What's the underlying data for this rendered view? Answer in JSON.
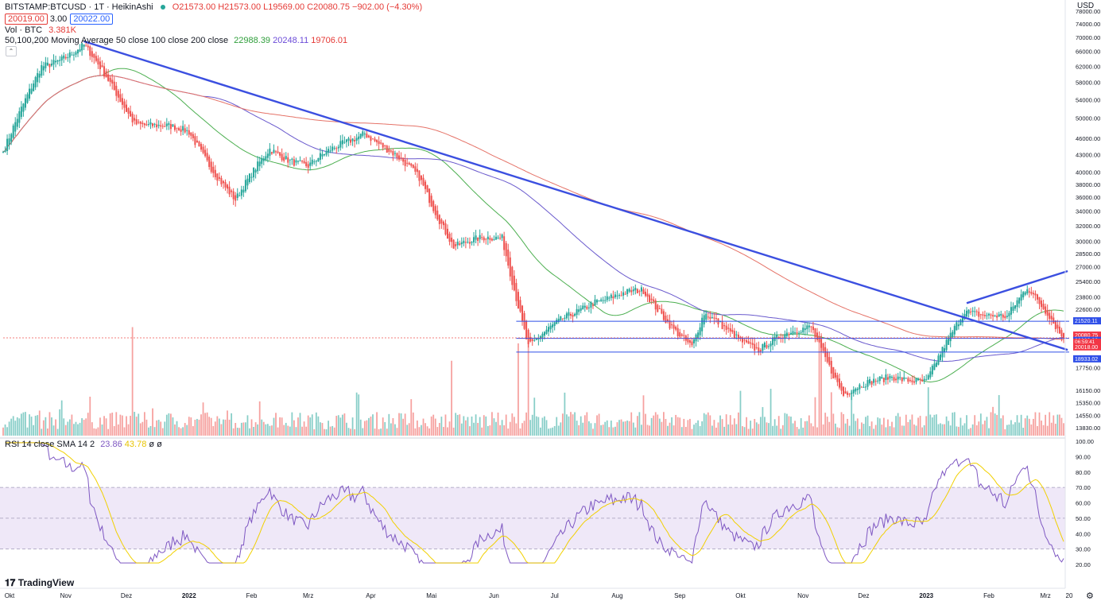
{
  "legend": {
    "symbol_line": "BITSTAMP:BTCUSD · 1T · HeikinAshi",
    "ohlc": "O21573.00 H21573.00 L19569.00 C20080.75 −902.00 (−4.30%)",
    "bid": "20019.00",
    "spread": "3.00",
    "ask": "20022.00",
    "vol_label": "Vol · BTC",
    "vol_value": "3.381K",
    "ma_label": "50,100,200 Moving Average 50 close 100 close 200 close",
    "ma50": "22988.39",
    "ma100": "20248.11",
    "ma200": "19706.01",
    "rsi_label": "RSI 14 close SMA 14 2",
    "rsi_value": "23.86",
    "rsi_sma": "43.78",
    "rsi_extra": "ø ø"
  },
  "price_axis": {
    "currency": "USD",
    "ticks": [
      "78000.00",
      "74000.00",
      "70000.00",
      "66000.00",
      "62000.00",
      "58000.00",
      "54000.00",
      "50000.00",
      "46000.00",
      "43000.00",
      "40000.00",
      "38000.00",
      "36000.00",
      "34000.00",
      "32000.00",
      "30000.00",
      "28500.00",
      "27000.00",
      "25400.00",
      "23800.00",
      "22600.00",
      "17750.00",
      "16150.00",
      "15350.00",
      "14550.00",
      "13830.00"
    ],
    "tag_21520": "21520.11",
    "tag_last": "20080.75",
    "tag_countdown": "06:59:41",
    "tag_20039": "20039.00",
    "tag_20018": "20018.00",
    "tag_18933": "18933.02"
  },
  "rsi_axis": {
    "ticks": [
      "100.00",
      "90.00",
      "80.00",
      "70.00",
      "60.00",
      "50.00",
      "40.00",
      "30.00",
      "20.00"
    ]
  },
  "time_axis": {
    "labels": [
      "Okt",
      "Nov",
      "Dez",
      "2022",
      "Feb",
      "Mrz",
      "Apr",
      "Mai",
      "Jun",
      "Jul",
      "Aug",
      "Sep",
      "Okt",
      "Nov",
      "Dez",
      "2023",
      "Feb",
      "Mrz",
      "20"
    ]
  },
  "branding": {
    "logo_text": "TradingView"
  },
  "colors": {
    "up": "#26a69a",
    "down": "#ef5350",
    "trendline": "#3b4fe0",
    "ma50": "#4caf50",
    "ma100": "#6a5acd",
    "ma200": "#e57368",
    "rsi": "#7e57c2",
    "rsi_sma": "#f1d000",
    "rsi_band": "#efe8f8"
  },
  "chart_data": [
    {
      "type": "candlestick",
      "title": "BITSTAMP:BTCUSD · 1T · HeikinAshi",
      "x_range": [
        "2021-10-01",
        "2023-03-10"
      ],
      "y_scale": "log",
      "y_range": [
        13830,
        78000
      ],
      "approx_close_path": [
        {
          "date": "2021-10-01",
          "value": 43500
        },
        {
          "date": "2021-10-20",
          "value": 62000
        },
        {
          "date": "2021-11-10",
          "value": 67500
        },
        {
          "date": "2021-12-05",
          "value": 49500
        },
        {
          "date": "2022-01-01",
          "value": 47000
        },
        {
          "date": "2022-01-24",
          "value": 35500
        },
        {
          "date": "2022-02-10",
          "value": 44000
        },
        {
          "date": "2022-03-01",
          "value": 41000
        },
        {
          "date": "2022-03-29",
          "value": 47500
        },
        {
          "date": "2022-04-25",
          "value": 39000
        },
        {
          "date": "2022-05-12",
          "value": 29500
        },
        {
          "date": "2022-06-05",
          "value": 30500
        },
        {
          "date": "2022-06-18",
          "value": 19500
        },
        {
          "date": "2022-07-20",
          "value": 23500
        },
        {
          "date": "2022-08-14",
          "value": 24300
        },
        {
          "date": "2022-09-07",
          "value": 19300
        },
        {
          "date": "2022-09-13",
          "value": 22000
        },
        {
          "date": "2022-10-10",
          "value": 19200
        },
        {
          "date": "2022-11-05",
          "value": 21200
        },
        {
          "date": "2022-11-21",
          "value": 15800
        },
        {
          "date": "2022-12-15",
          "value": 17300
        },
        {
          "date": "2023-01-01",
          "value": 16600
        },
        {
          "date": "2023-01-20",
          "value": 22700
        },
        {
          "date": "2023-02-10",
          "value": 21700
        },
        {
          "date": "2023-02-20",
          "value": 24700
        },
        {
          "date": "2023-03-03",
          "value": 22300
        },
        {
          "date": "2023-03-10",
          "value": 20080.75
        }
      ],
      "horizontal_levels": [
        21520.11,
        20039.0,
        18933.02
      ],
      "trendlines": [
        {
          "from": {
            "date": "2021-11-10",
            "value": 68800
          },
          "to": {
            "date": "2023-03-12",
            "value": 19100
          }
        },
        {
          "from": {
            "date": "2023-01-21",
            "value": 23200
          },
          "to": {
            "date": "2023-03-12",
            "value": 26500
          }
        }
      ],
      "moving_averages": {
        "ma50": 22988.39,
        "ma100": 20248.11,
        "ma200": 19706.01
      },
      "series": [
        {
          "name": "50 close",
          "last": 22988.39
        },
        {
          "name": "100 close",
          "last": 20248.11
        },
        {
          "name": "200 close",
          "last": 19706.01
        }
      ]
    },
    {
      "type": "line",
      "title": "RSI 14 close SMA 14 2",
      "y_range": [
        20,
        100
      ],
      "bands": [
        30,
        50,
        70
      ],
      "series": [
        {
          "name": "RSI",
          "last": 23.86
        },
        {
          "name": "SMA",
          "last": 43.78
        }
      ]
    }
  ]
}
